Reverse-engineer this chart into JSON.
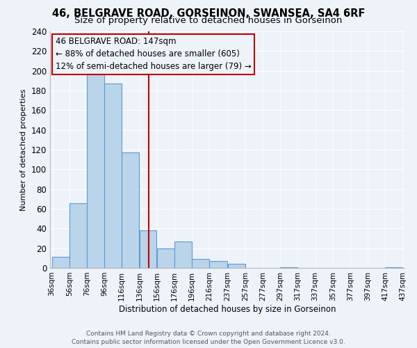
{
  "title": "46, BELGRAVE ROAD, GORSEINON, SWANSEA, SA4 6RF",
  "subtitle": "Size of property relative to detached houses in Gorseinon",
  "xlabel": "Distribution of detached houses by size in Gorseinon",
  "ylabel": "Number of detached properties",
  "bar_edges": [
    36,
    56,
    76,
    96,
    116,
    136,
    156,
    176,
    196,
    216,
    237,
    257,
    277,
    297,
    317,
    337,
    357,
    377,
    397,
    417,
    437
  ],
  "bar_heights": [
    11,
    66,
    200,
    187,
    117,
    38,
    20,
    27,
    9,
    7,
    4,
    0,
    0,
    1,
    0,
    0,
    0,
    0,
    0,
    1
  ],
  "bar_color": "#bad4ea",
  "bar_edge_color": "#5b9bd5",
  "vline_x": 147,
  "vline_color": "#c00000",
  "ylim": [
    0,
    240
  ],
  "yticks": [
    0,
    20,
    40,
    60,
    80,
    100,
    120,
    140,
    160,
    180,
    200,
    220,
    240
  ],
  "annotation_line1": "46 BELGRAVE ROAD: 147sqm",
  "annotation_line2": "← 88% of detached houses are smaller (605)",
  "annotation_line3": "12% of semi-detached houses are larger (79) →",
  "footer1": "Contains HM Land Registry data © Crown copyright and database right 2024.",
  "footer2": "Contains public sector information licensed under the Open Government Licence v3.0.",
  "bg_color": "#eef2f9",
  "grid_color": "#d0d8e8",
  "title_fontsize": 10.5,
  "subtitle_fontsize": 9.5,
  "axis_label_fontsize": 8.5,
  "tick_label_fontsize": 7.5,
  "ylabel_fontsize": 8.0,
  "footer_fontsize": 6.5,
  "annotation_fontsize": 8.5
}
